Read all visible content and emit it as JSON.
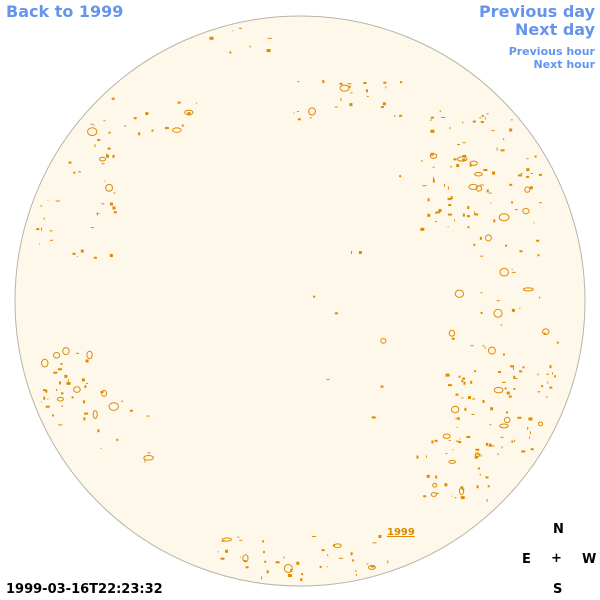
{
  "nav": {
    "back_label": "Back to 1999",
    "previous_day_label": "Previous day",
    "next_day_label": "Next day",
    "previous_hour_label": "Previous hour",
    "next_hour_label": "Next hour"
  },
  "disk": {
    "fill_color": "#fdf8ea",
    "edge_color": "#b8b4a8",
    "feature_color": "#e08a00",
    "year_label": "1999"
  },
  "compass": {
    "north": "N",
    "south": "S",
    "east": "E",
    "west": "W",
    "center": "+"
  },
  "timestamp": "1999-03-16T22:23:32"
}
